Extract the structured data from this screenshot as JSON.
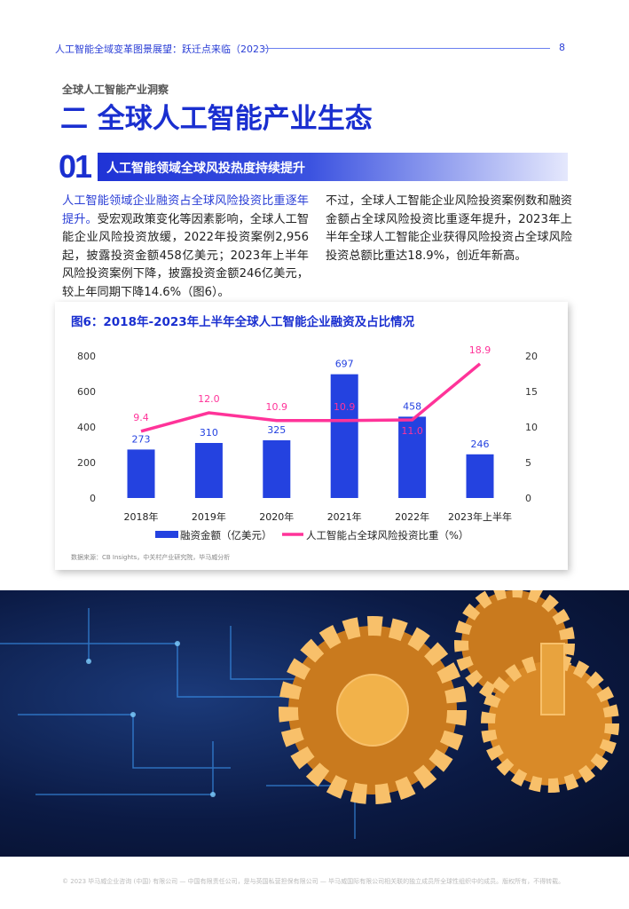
{
  "header": {
    "title": "人工智能全域变革图景展望：跃迁点来临（2023）",
    "page": "8"
  },
  "kicker": "全球人工智能产业洞察",
  "title": "二 全球人工智能产业生态",
  "section": {
    "number": "01",
    "title": "人工智能领域全球风投热度持续提升"
  },
  "body": {
    "left_highlight": "人工智能领域企业融资占全球风险投资比重逐年提升。",
    "left_text": "受宏观政策变化等因素影响，全球人工智能企业风险投资放缓，2022年投资案例2,956起，披露投资金额458亿美元；2023年上半年风险投资案例下降，披露投资金额246亿美元，较上年同期下降14.6%（图6）。",
    "right_text": "不过，全球人工智能企业风险投资案例数和融资金额占全球风险投资比重逐年提升，2023年上半年全球人工智能企业获得风险投资占全球风险投资总额比重达18.9%，创近年新高。"
  },
  "chart_data": {
    "type": "bar+line",
    "title": "图6：2018年-2023年上半年全球人工智能企业融资及占比情况",
    "categories": [
      "2018年",
      "2019年",
      "2020年",
      "2021年",
      "2022年",
      "2023年上半年"
    ],
    "series": [
      {
        "name": "融资金额（亿美元）",
        "type": "bar",
        "axis": "left",
        "color": "#2442e0",
        "values": [
          273,
          310,
          325,
          697,
          458,
          246
        ]
      },
      {
        "name": "人工智能占全球风险投资比重（%）",
        "type": "line",
        "axis": "right",
        "color": "#ff3399",
        "values": [
          9.4,
          12.0,
          10.9,
          10.9,
          11.0,
          18.9
        ]
      }
    ],
    "y_left": {
      "ticks": [
        "0",
        "200",
        "400",
        "600",
        "800"
      ],
      "range": [
        0,
        800
      ]
    },
    "y_right": {
      "ticks": [
        "0",
        "5",
        "10",
        "15",
        "20"
      ],
      "range": [
        0,
        20
      ]
    },
    "legend": "bottom",
    "source": "数据来源：CB Insights，中关村产业研究院，毕马威分析"
  },
  "footer": "© 2023 毕马威企业咨询 (中国) 有限公司 — 中国有限责任公司，是与英国私营担保有限公司 — 毕马威国际有限公司相关联的独立成员所全球性组织中的成员。版权所有，不得转载。"
}
